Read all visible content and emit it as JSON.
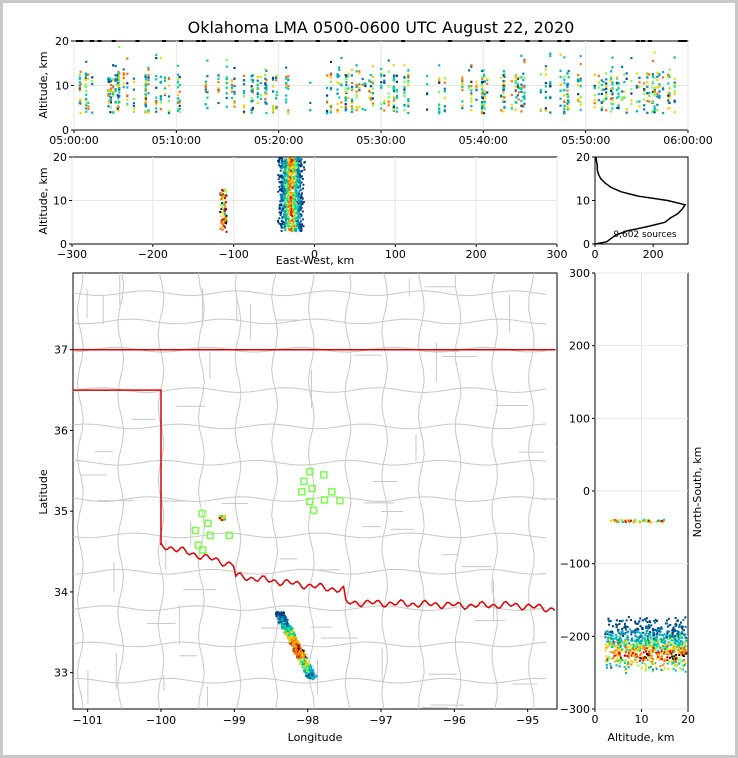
{
  "title": "Oklahoma LMA 0500-0600 UTC August 22, 2020",
  "colors": {
    "state_border": "#e00000",
    "county_lines": "#c8c8c8",
    "stations": "#7cfc4a",
    "grid": "#e6e6e6",
    "source_palette": [
      "#003f7f",
      "#0077b6",
      "#00b0c8",
      "#00d0a0",
      "#7cfc4a",
      "#ffd000",
      "#ff7000",
      "#e00000",
      "#000000"
    ]
  },
  "panels": {
    "time_height": {
      "ylabel": "Altitude, km",
      "ylim": [
        0,
        20
      ],
      "yticks": [
        "0",
        "10",
        "20"
      ],
      "xticks": [
        "05:00:00",
        "05:10:00",
        "05:20:00",
        "05:30:00",
        "05:40:00",
        "05:50:00",
        "06:00:00"
      ]
    },
    "ew_height": {
      "ylabel": "Altitude, km",
      "xlabel": "East-West, km",
      "ylim": [
        0,
        20
      ],
      "xlim": [
        -300,
        300
      ],
      "yticks": [
        "0",
        "10",
        "20"
      ],
      "xticks": [
        "−300",
        "−200",
        "−100",
        "0",
        "100",
        "200",
        "300"
      ]
    },
    "histogram": {
      "annotation": "9,602 sources",
      "xticks": [
        "0",
        "200"
      ],
      "yticks": [
        "0",
        "10",
        "20"
      ]
    },
    "plan_view": {
      "xlabel": "Longitude",
      "ylabel": "Latitude",
      "xlim": [
        -101.2,
        -94.6
      ],
      "ylim": [
        32.55,
        37.95
      ],
      "xticks": [
        "−101",
        "−100",
        "−99",
        "−98",
        "−97",
        "−96",
        "−95"
      ],
      "yticks": [
        "33",
        "34",
        "35",
        "36",
        "37"
      ]
    },
    "ns_height": {
      "ylabel": "North-South, km",
      "xlabel": "Altitude, km",
      "ylim": [
        -300,
        300
      ],
      "xlim": [
        0,
        20
      ],
      "yticks": [
        "−300",
        "−200",
        "−100",
        "0",
        "100",
        "200",
        "300"
      ],
      "xticks": [
        "0",
        "10",
        "20"
      ]
    }
  },
  "chart_data": {
    "type": "scatter",
    "title": "Oklahoma LMA 0500-0600 UTC August 22, 2020",
    "total_sources": "9,602 sources",
    "time_range": [
      "05:00:00",
      "06:00:00"
    ],
    "lightning_clusters": [
      {
        "name": "",
        "lon": -99.2,
        "lat": 34.93,
        "east_west_km": -115,
        "north_south_km": -38,
        "altitude_range_km": [
          3,
          13
        ]
      },
      {
        "name": "",
        "lon": -98.2,
        "lat": 33.3,
        "east_west_km": -30,
        "north_south_km": -220,
        "altitude_range_km": [
          3,
          20
        ]
      }
    ],
    "stations": [
      {
        "lon": -97.97,
        "lat": 35.49
      },
      {
        "lon": -97.78,
        "lat": 35.45
      },
      {
        "lon": -98.05,
        "lat": 35.37
      },
      {
        "lon": -97.94,
        "lat": 35.28
      },
      {
        "lon": -98.08,
        "lat": 35.24
      },
      {
        "lon": -97.67,
        "lat": 35.24
      },
      {
        "lon": -97.77,
        "lat": 35.14
      },
      {
        "lon": -97.56,
        "lat": 35.13
      },
      {
        "lon": -97.97,
        "lat": 35.12
      },
      {
        "lon": -97.92,
        "lat": 35.01
      },
      {
        "lon": -99.44,
        "lat": 34.97
      },
      {
        "lon": -99.36,
        "lat": 34.85
      },
      {
        "lon": -99.53,
        "lat": 34.76
      },
      {
        "lon": -99.33,
        "lat": 34.7
      },
      {
        "lon": -99.07,
        "lat": 34.7
      },
      {
        "lon": -99.49,
        "lat": 34.58
      },
      {
        "lon": -99.43,
        "lat": 34.52
      }
    ],
    "altitude_histogram": {
      "altitude_km": [
        0.5,
        2,
        3,
        4,
        5,
        6,
        7,
        8,
        9,
        10,
        11,
        12,
        13,
        14,
        15,
        16,
        17,
        18,
        19,
        20
      ],
      "count": [
        40,
        70,
        110,
        180,
        240,
        260,
        285,
        300,
        310,
        250,
        150,
        90,
        55,
        35,
        20,
        12,
        8,
        8,
        5,
        3
      ]
    }
  }
}
